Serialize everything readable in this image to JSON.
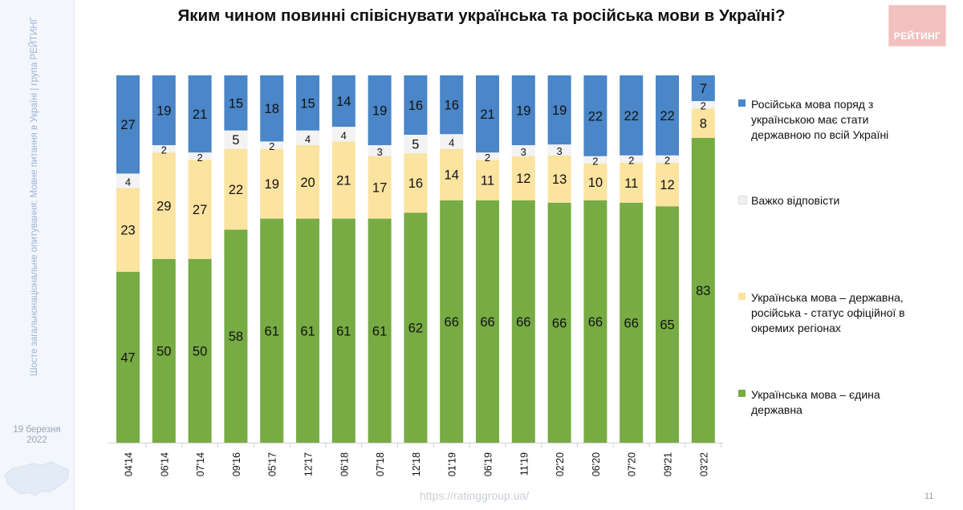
{
  "side_caption": "Шосте загальнонаціональне опитування: Мовне питання в Україні | група РЕЙТИНГ",
  "date_label": [
    "19 березня",
    "2022"
  ],
  "logo_text": "РЕЙТИНГ",
  "footer_url": "https://ratinggroup.ua/",
  "page_number": "11",
  "colors": {
    "blue": "#4a86c8",
    "grey": "#f0f0f0",
    "yellow": "#fbe3a0",
    "green": "#77ab43",
    "logo": "#f2c1bf"
  },
  "chart_data": {
    "type": "bar",
    "stacked": true,
    "percent": true,
    "title": "Яким чином повинні співіснувати українська та російська мови в Україні?",
    "categories": [
      "04'14",
      "06'14",
      "07'14",
      "09'16",
      "05'17",
      "12'17",
      "06'18",
      "07'18",
      "12'18",
      "01'19",
      "06'19",
      "11'19",
      "02'20",
      "06'20",
      "07'20",
      "09'21",
      "03'22"
    ],
    "series": [
      {
        "name": "Українська мова – єдина державна",
        "color": "#77ab43",
        "values": [
          47,
          50,
          50,
          58,
          61,
          61,
          61,
          61,
          62,
          66,
          66,
          66,
          66,
          66,
          66,
          65,
          83
        ]
      },
      {
        "name": "Українська мова – державна, російська - статус офіційної в окремих регіонах",
        "color": "#fbe3a0",
        "values": [
          23,
          29,
          27,
          22,
          19,
          20,
          21,
          17,
          16,
          14,
          11,
          12,
          13,
          10,
          11,
          12,
          8
        ]
      },
      {
        "name": "Важко відповісти",
        "color": "#f0f0f0",
        "values": [
          4,
          2,
          2,
          5,
          2,
          4,
          4,
          3,
          5,
          4,
          2,
          3,
          3,
          2,
          2,
          2,
          2
        ]
      },
      {
        "name": "Російська мова поряд з українською має стати державною по всій Україні",
        "color": "#4a86c8",
        "values": [
          27,
          19,
          21,
          15,
          18,
          15,
          14,
          19,
          16,
          16,
          21,
          19,
          19,
          22,
          22,
          22,
          7
        ]
      }
    ],
    "legend_position": "right",
    "grid": false
  },
  "legend": {
    "items": [
      {
        "label": "Російська мова поряд з українською має стати державною по всій Україні",
        "color": "#4a86c8"
      },
      {
        "label": "Важко відповісти",
        "color": "#f0f0f0"
      },
      {
        "label": "Українська мова – державна, російська - статус офіційної в окремих регіонах",
        "color": "#fbe3a0"
      },
      {
        "label": "Українська мова – єдина державна",
        "color": "#77ab43"
      }
    ]
  }
}
